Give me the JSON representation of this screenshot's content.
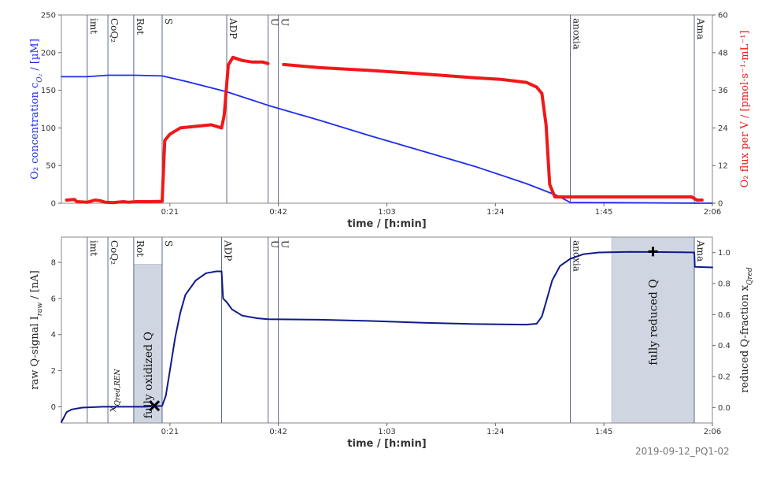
{
  "chart_data": [
    {
      "type": "line",
      "name": "top",
      "xlabel": "time / [h:min]",
      "ylabel_left": "O₂ concentration c_O₂ / [µM]",
      "ylabel_right": "O₂ flux per V / [pmol·s⁻¹·mL⁻¹]",
      "xlim": [
        0,
        126
      ],
      "ylim_left": [
        0,
        250
      ],
      "ylim_right": [
        0,
        60
      ],
      "x_ticks": [
        {
          "v": 21,
          "label": "0:21"
        },
        {
          "v": 42,
          "label": "0:42"
        },
        {
          "v": 63,
          "label": "1:03"
        },
        {
          "v": 84,
          "label": "1:24"
        },
        {
          "v": 105,
          "label": "1:45"
        },
        {
          "v": 126,
          "label": "2:06"
        }
      ],
      "y_ticks_left": [
        0,
        50,
        100,
        150,
        200,
        250
      ],
      "y_ticks_right": [
        0,
        12,
        24,
        36,
        48,
        60
      ],
      "events": [
        {
          "x": 5,
          "label": "imt"
        },
        {
          "x": 9,
          "label": "CoQ₂"
        },
        {
          "x": 14,
          "label": "Rot"
        },
        {
          "x": 19.5,
          "label": "S"
        },
        {
          "x": 32,
          "label": "ADP"
        },
        {
          "x": 40,
          "label": "U"
        },
        {
          "x": 42,
          "label": "U"
        },
        {
          "x": 98.5,
          "label": "anoxia"
        },
        {
          "x": 122.5,
          "label": "Ama"
        }
      ],
      "series": [
        {
          "color": "#1e2cf0",
          "axis": "left",
          "points": [
            [
              0,
              168
            ],
            [
              5,
              168
            ],
            [
              9,
              170
            ],
            [
              14,
              170
            ],
            [
              19.5,
              169
            ],
            [
              24,
              162
            ],
            [
              32,
              148
            ],
            [
              40,
              130
            ],
            [
              50,
              110
            ],
            [
              60,
              89
            ],
            [
              70,
              69
            ],
            [
              80,
              49
            ],
            [
              90,
              26
            ],
            [
              96,
              10
            ],
            [
              98.5,
              1
            ],
            [
              126,
              0
            ]
          ]
        },
        {
          "color": "#f01818",
          "axis": "right",
          "points": [
            [
              1,
              1
            ],
            [
              2.5,
              1.2
            ],
            [
              3,
              0.5
            ],
            [
              5,
              0.3
            ],
            [
              6.5,
              1
            ],
            [
              7.5,
              0.8
            ],
            [
              8.5,
              0.3
            ],
            [
              10,
              0.2
            ],
            [
              12,
              0.5
            ],
            [
              13,
              0.3
            ],
            [
              14.5,
              0.5
            ],
            [
              17,
              0.5
            ],
            [
              19.5,
              0.6
            ],
            [
              20,
              20
            ],
            [
              21,
              22
            ],
            [
              23,
              24
            ],
            [
              26,
              24.5
            ],
            [
              29,
              25
            ],
            [
              31,
              24
            ],
            [
              31.5,
              28
            ],
            [
              32.3,
              44
            ],
            [
              33.2,
              46.5
            ],
            [
              35,
              45.5
            ],
            [
              37,
              45
            ],
            [
              39,
              45
            ],
            [
              40,
              44.5
            ],
            [
              null,
              null
            ],
            [
              43,
              44.2
            ],
            [
              50,
              43.2
            ],
            [
              60,
              42.3
            ],
            [
              70,
              41.2
            ],
            [
              80,
              40
            ],
            [
              85,
              39.5
            ],
            [
              90,
              38.5
            ],
            [
              92,
              37
            ],
            [
              93,
              35
            ],
            [
              93.8,
              25
            ],
            [
              94.5,
              6
            ],
            [
              95.5,
              2
            ],
            [
              100,
              2
            ],
            [
              110,
              2
            ],
            [
              120,
              2
            ],
            [
              122,
              2
            ],
            [
              123,
              1
            ],
            [
              124,
              1
            ]
          ]
        }
      ]
    },
    {
      "type": "line",
      "name": "bottom",
      "xlabel": "time / [h:min]",
      "ylabel_left": "raw Q-signal I_raw / [nA]",
      "ylabel_right": "reduced Q-fraction x_Qred",
      "xlim": [
        0,
        126
      ],
      "ylim_left": [
        -0.9,
        9.4
      ],
      "ylim_right": [
        -0.1,
        1.1
      ],
      "x_ticks": [
        {
          "v": 21,
          "label": "0:21"
        },
        {
          "v": 42,
          "label": "0:42"
        },
        {
          "v": 63,
          "label": "1:03"
        },
        {
          "v": 84,
          "label": "1:24"
        },
        {
          "v": 105,
          "label": "1:45"
        },
        {
          "v": 126,
          "label": "2:06"
        }
      ],
      "y_ticks_left": [
        0,
        2,
        4,
        6,
        8
      ],
      "y_ticks_right": [
        {
          "v": 0.0,
          "label": "0.0"
        },
        {
          "v": 0.2,
          "label": "0.2"
        },
        {
          "v": 0.4,
          "label": "0.4"
        },
        {
          "v": 0.6,
          "label": "0.6"
        },
        {
          "v": 0.8,
          "label": "0.8"
        },
        {
          "v": 1.0,
          "label": "1.0"
        }
      ],
      "events": [
        {
          "x": 5,
          "label": "imt"
        },
        {
          "x": 9,
          "label": "CoQ₂"
        },
        {
          "x": 14,
          "label": "Rot"
        },
        {
          "x": 19.5,
          "label": "S"
        },
        {
          "x": 31,
          "label": "ADP"
        },
        {
          "x": 40,
          "label": "U"
        },
        {
          "x": 42,
          "label": "U"
        },
        {
          "x": 98.5,
          "label": "anoxia"
        },
        {
          "x": 122.5,
          "label": "Ama"
        }
      ],
      "shaded": [
        {
          "x0": 14,
          "x1": 19.5,
          "y0": -0.9,
          "y1": 7.9,
          "label": "fully oxidized Q"
        },
        {
          "x0": 106.5,
          "x1": 122.5,
          "y0": -0.9,
          "y1": 9.4,
          "label": "fully reduced Q"
        }
      ],
      "annotations": [
        {
          "text": "x_Qred,REN",
          "x": 10.5,
          "y": 0.9
        }
      ],
      "markers": [
        {
          "symbol": "x",
          "x": 18,
          "y": 0.05
        },
        {
          "symbol": "+",
          "x": 114.5,
          "y": 8.6
        }
      ],
      "series": [
        {
          "color": "#0e1a8c",
          "axis": "left",
          "points": [
            [
              0,
              -0.85
            ],
            [
              1,
              -0.3
            ],
            [
              2,
              -0.15
            ],
            [
              4,
              -0.05
            ],
            [
              8,
              0
            ],
            [
              12,
              0
            ],
            [
              16,
              0
            ],
            [
              19.5,
              0.05
            ],
            [
              20.2,
              0.6
            ],
            [
              21,
              2
            ],
            [
              22,
              3.8
            ],
            [
              23,
              5.2
            ],
            [
              24,
              6.2
            ],
            [
              26,
              7
            ],
            [
              28,
              7.4
            ],
            [
              30,
              7.5
            ],
            [
              31,
              7.5
            ],
            [
              31.3,
              6
            ],
            [
              32,
              5.8
            ],
            [
              33,
              5.4
            ],
            [
              35,
              5.05
            ],
            [
              38,
              4.9
            ],
            [
              40,
              4.85
            ],
            [
              50,
              4.82
            ],
            [
              60,
              4.75
            ],
            [
              70,
              4.65
            ],
            [
              80,
              4.58
            ],
            [
              90,
              4.55
            ],
            [
              92,
              4.6
            ],
            [
              93,
              5
            ],
            [
              94,
              6
            ],
            [
              95,
              7
            ],
            [
              96.5,
              7.8
            ],
            [
              98.5,
              8.2
            ],
            [
              101,
              8.45
            ],
            [
              104,
              8.55
            ],
            [
              110,
              8.58
            ],
            [
              116,
              8.57
            ],
            [
              120,
              8.56
            ],
            [
              122.5,
              8.55
            ],
            [
              122.6,
              7.75
            ],
            [
              126,
              7.72
            ]
          ]
        }
      ]
    }
  ],
  "watermark": "2019-09-12_PQ1-02"
}
